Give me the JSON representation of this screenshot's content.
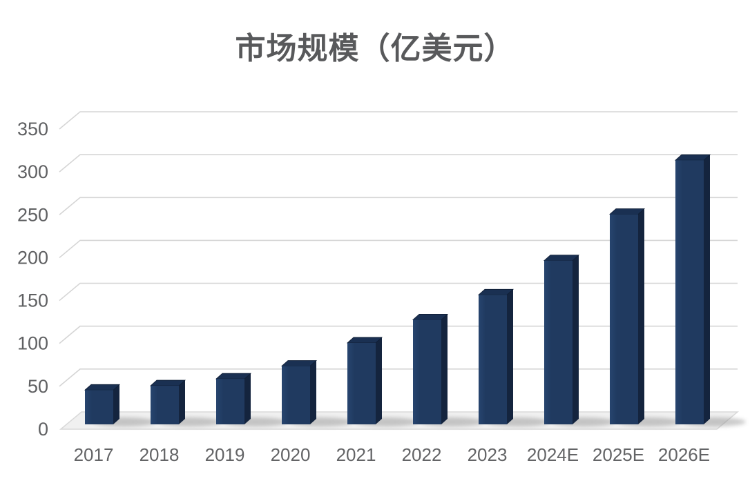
{
  "chart_data": {
    "type": "bar",
    "style": "3d-column",
    "title": "市场规模（亿美元）",
    "xlabel": "",
    "ylabel": "",
    "categories": [
      "2017",
      "2018",
      "2019",
      "2020",
      "2021",
      "2022",
      "2023",
      "2024E",
      "2025E",
      "2026E"
    ],
    "values": [
      40,
      45,
      53,
      68,
      95,
      122,
      151,
      191,
      245,
      308
    ],
    "ylim": [
      0,
      350
    ],
    "y_ticks": [
      0,
      50,
      100,
      150,
      200,
      250,
      300,
      350
    ],
    "grid": true,
    "legend": false,
    "colors": {
      "bar_front": "#203a60",
      "bar_front_light": "#27456f",
      "bar_top": "#1a3052",
      "bar_side": "#14243e",
      "bar_edge": "#0e1c33",
      "gridline": "#d5d5d5",
      "floor_fill": "#f0f0f0",
      "floor_edge": "#d9d9d9",
      "shadow": "#8d8d8d",
      "title_text": "#58595b",
      "tick_text": "#5f6062",
      "background": "#ffffff"
    }
  }
}
